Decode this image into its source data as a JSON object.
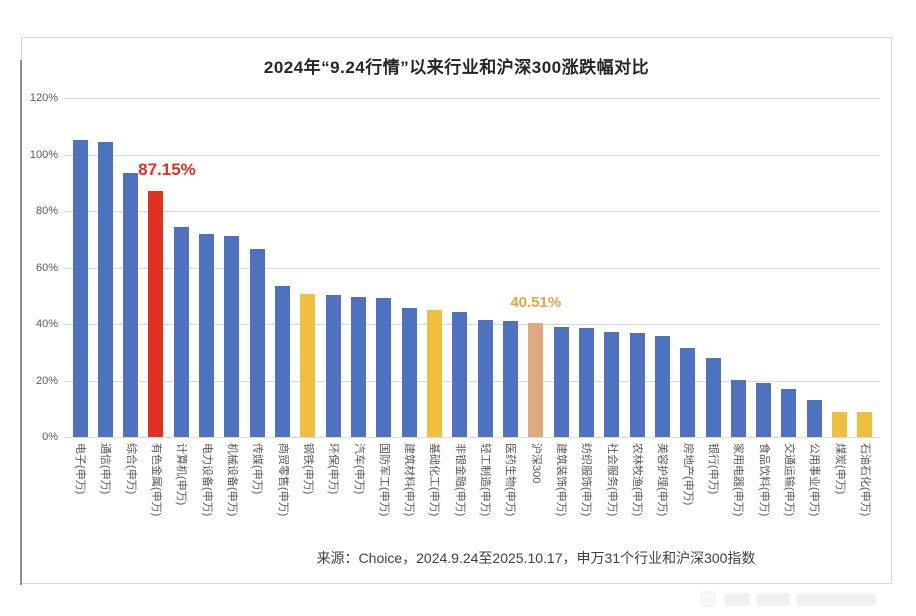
{
  "page": {
    "source_note": "来源：Choice，2024.9.24至2025.10.17，申万31个行业和沪深300指数"
  },
  "colors": {
    "bar_default": "#4e72c0",
    "bar_highlight_red": "#e0301e",
    "bar_highlight_yellow": "#efbf3f",
    "bar_index_tan": "#dfa87e",
    "gridline": "#d9d9d9",
    "axis_text": "#595959",
    "annotation_red": "#e0301e",
    "annotation_gold": "#e9a23b"
  },
  "chart_data": {
    "type": "bar",
    "title": "2024年“9.24行情”以来行业和沪深300涨跌幅对比",
    "xlabel": "",
    "ylabel": "",
    "ylim": [
      0,
      120
    ],
    "ytick_labels": [
      "120%",
      "100%",
      "80%",
      "60%",
      "40%",
      "20%",
      "0%"
    ],
    "grid": true,
    "legend": "none",
    "categories": [
      "电子(申万)",
      "通信(申万)",
      "综合(申万)",
      "有色金属(申万)",
      "计算机(申万)",
      "电力设备(申万)",
      "机械设备(申万)",
      "传媒(申万)",
      "商贸零售(申万)",
      "钢铁(申万)",
      "环保(申万)",
      "汽车(申万)",
      "国防军工(申万)",
      "建筑材料(申万)",
      "基础化工(申万)",
      "非银金融(申万)",
      "轻工制造(申万)",
      "医药生物(申万)",
      "沪深300",
      "建筑装饰(申万)",
      "纺织服饰(申万)",
      "社会服务(申万)",
      "农林牧渔(申万)",
      "美容护理(申万)",
      "房地产(申万)",
      "银行(申万)",
      "家用电器(申万)",
      "食品饮料(申万)",
      "交通运输(申万)",
      "公用事业(申万)",
      "煤炭(申万)",
      "石油石化(申万)"
    ],
    "values": [
      105.2,
      104.5,
      93.4,
      87.15,
      74.2,
      71.7,
      71.3,
      66.5,
      53.5,
      50.6,
      50.2,
      49.7,
      49.2,
      45.7,
      45.0,
      44.2,
      41.3,
      41.2,
      40.51,
      39.0,
      38.5,
      37.3,
      36.7,
      35.7,
      31.4,
      28.0,
      20.2,
      19.0,
      17.1,
      13.0,
      8.7,
      8.7
    ],
    "bar_colors": [
      "#4e72c0",
      "#4e72c0",
      "#4e72c0",
      "#e0301e",
      "#4e72c0",
      "#4e72c0",
      "#4e72c0",
      "#4e72c0",
      "#4e72c0",
      "#efbf3f",
      "#4e72c0",
      "#4e72c0",
      "#4e72c0",
      "#4e72c0",
      "#efbf3f",
      "#4e72c0",
      "#4e72c0",
      "#4e72c0",
      "#dfa87e",
      "#4e72c0",
      "#4e72c0",
      "#4e72c0",
      "#4e72c0",
      "#4e72c0",
      "#4e72c0",
      "#4e72c0",
      "#4e72c0",
      "#4e72c0",
      "#4e72c0",
      "#4e72c0",
      "#efbf3f",
      "#efbf3f"
    ],
    "annotations": [
      {
        "label": "87.15%",
        "category_index": 3,
        "color": "#e0301e",
        "offset_x": 11,
        "font_size": 17
      },
      {
        "label": "40.51%",
        "category_index": 18,
        "color": "#e9a23b",
        "offset_x": 0,
        "font_size": 15
      }
    ]
  }
}
